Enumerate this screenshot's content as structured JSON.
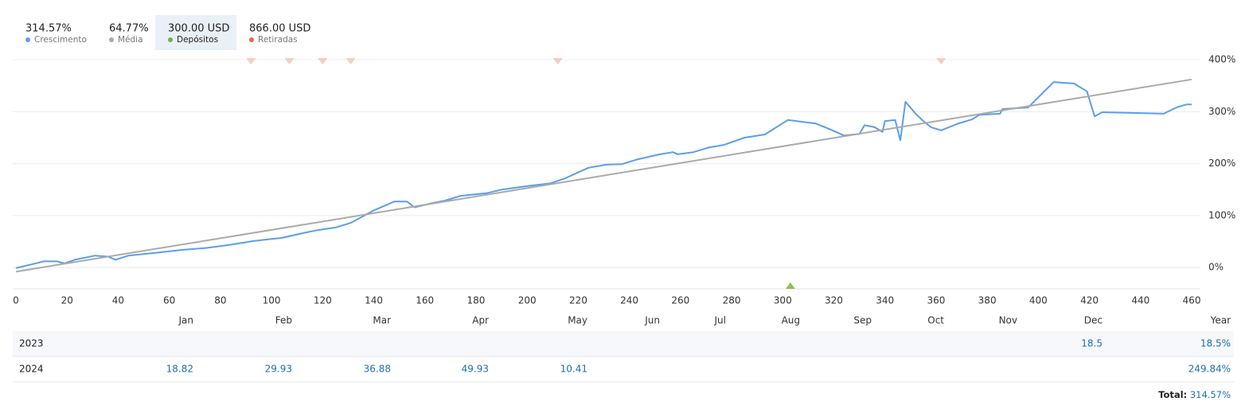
{
  "chart_data": {
    "type": "line",
    "series": [
      {
        "name": "Crescimento",
        "summary": "314.57%",
        "color": "#5b9ee8",
        "dot": "#5b9ee8",
        "x": [
          0,
          6,
          11,
          16,
          19,
          23,
          31,
          36,
          39,
          44,
          48,
          56,
          65,
          75,
          84,
          93,
          100,
          104,
          112,
          118,
          125,
          131,
          140,
          148,
          153,
          156,
          162,
          168,
          174,
          184,
          190,
          199,
          209,
          215,
          224,
          231,
          237,
          243,
          252,
          257,
          259,
          265,
          271,
          277,
          285,
          293,
          302,
          313,
          319,
          324,
          330,
          332,
          336,
          339,
          340,
          344,
          346,
          348,
          352,
          355,
          358,
          362,
          368,
          374,
          377,
          385,
          386,
          396,
          406,
          414,
          419,
          422,
          425,
          449,
          454,
          458,
          460
        ],
        "values": [
          -1,
          6,
          12,
          12,
          8,
          15,
          23,
          21,
          15,
          23,
          25,
          29,
          34,
          38,
          44,
          51,
          55,
          57,
          66,
          72,
          77,
          86,
          110,
          127,
          127,
          116,
          123,
          129,
          138,
          143,
          150,
          156,
          162,
          172,
          192,
          198,
          199,
          208,
          218,
          222,
          218,
          222,
          231,
          236,
          250,
          256,
          284,
          277,
          265,
          254,
          257,
          274,
          270,
          261,
          282,
          284,
          245,
          319,
          296,
          282,
          270,
          264,
          276,
          285,
          294,
          296,
          305,
          308,
          357,
          354,
          339,
          291,
          299,
          296,
          308,
          314,
          314
        ]
      },
      {
        "name": "Média",
        "summary": "64.77%",
        "color": "#aaaaaa",
        "dot": "#aaaaaa",
        "x": [
          0,
          460
        ],
        "values": [
          -8,
          362
        ]
      },
      {
        "name": "Depósitos",
        "summary": "300.00 USD",
        "color": "#8bc34a",
        "dot": "#6ab04c",
        "marker": "up",
        "selected": true,
        "x": [
          303
        ]
      },
      {
        "name": "Retiradas",
        "summary": "866.00 USD",
        "color": "#f6cdbf",
        "dot": "#e8664a",
        "marker": "down",
        "x": [
          92,
          107,
          120,
          131,
          212,
          362
        ]
      }
    ],
    "xlim": [
      0,
      460
    ],
    "xticks": [
      0,
      20,
      40,
      60,
      80,
      100,
      120,
      140,
      160,
      180,
      200,
      220,
      240,
      260,
      280,
      300,
      320,
      340,
      360,
      380,
      400,
      420,
      440,
      460
    ],
    "ylim": [
      -41,
      400
    ],
    "yticks": [
      {
        "value": 400,
        "label": "400%"
      },
      {
        "value": 300,
        "label": "300%"
      },
      {
        "value": 200,
        "label": "200%"
      },
      {
        "value": 100,
        "label": "100%"
      },
      {
        "value": 0,
        "label": "0%"
      }
    ],
    "grid": true
  },
  "table": {
    "columns": [
      "Jan",
      "Feb",
      "Mar",
      "Apr",
      "May",
      "Jun",
      "Jul",
      "Aug",
      "Sep",
      "Oct",
      "Nov",
      "Dec",
      "Year"
    ],
    "rows": [
      {
        "label": "2023",
        "cells": [
          null,
          null,
          null,
          null,
          null,
          null,
          null,
          null,
          null,
          null,
          null,
          "18.5",
          "18.5%"
        ]
      },
      {
        "label": "2024",
        "cells": [
          "18.82",
          "29.93",
          "36.88",
          "49.93",
          "10.41",
          null,
          null,
          null,
          null,
          null,
          null,
          null,
          "249.84%"
        ]
      }
    ],
    "total": {
      "label": "Total:",
      "value": "314.57%"
    }
  }
}
